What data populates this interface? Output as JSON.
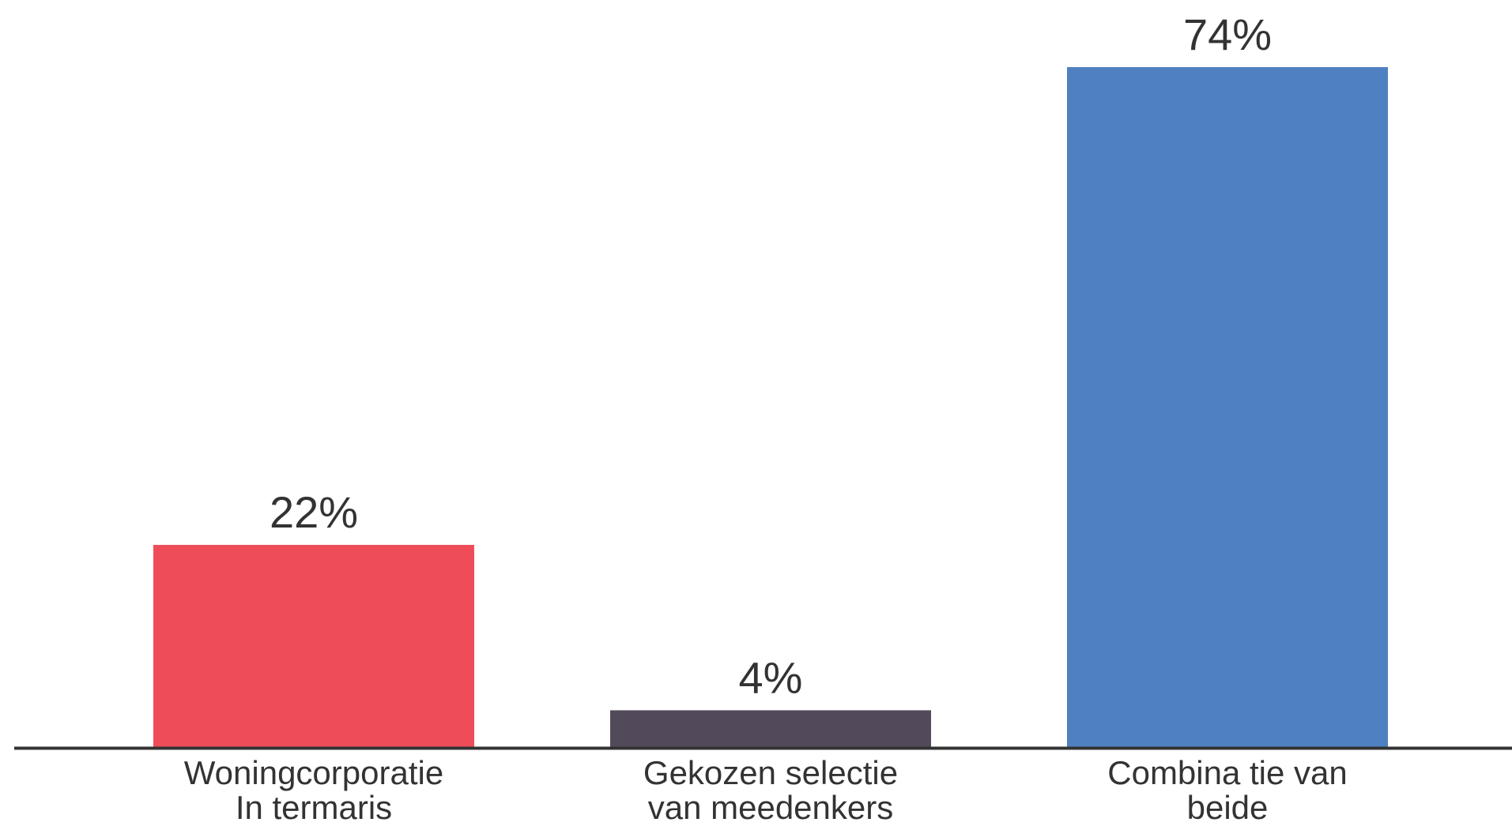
{
  "chart_data": {
    "type": "bar",
    "title": "",
    "xlabel": "",
    "ylabel": "",
    "ylim": [
      0,
      74
    ],
    "grid": false,
    "legend": "none",
    "categories": [
      "Woningcorporatie Intermaris",
      "Gekozen selectie van meedenkers",
      "Combinatie van beide"
    ],
    "category_lines": [
      [
        "Woningcorporatie",
        "In termaris"
      ],
      [
        "Gekozen selectie",
        "van meedenkers"
      ],
      [
        "Combina tie van",
        "beide"
      ]
    ],
    "values": [
      22,
      4,
      74
    ],
    "value_labels": [
      "22%",
      "4%",
      "74%"
    ],
    "colors": [
      "#ef4c5a",
      "#524a5a",
      "#4f80c2"
    ],
    "axis_color": "#333333"
  }
}
